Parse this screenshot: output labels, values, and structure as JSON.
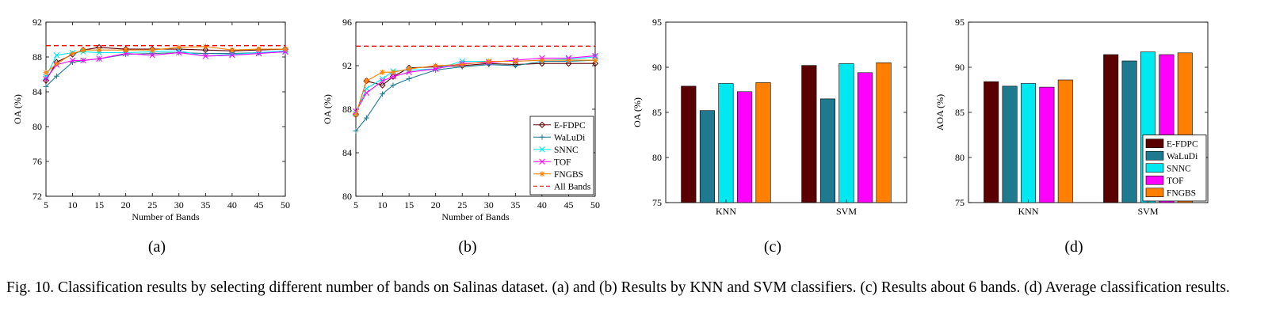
{
  "figure": {
    "caption_label": "Fig. 10.",
    "caption_text": "Classification results by selecting different number of bands on Salinas dataset. (a) and (b) Results by KNN and SVM classifiers. (c) Results about 6 bands. (d) Average classification results."
  },
  "colors": {
    "E-FDPC": "#5a0000",
    "WaLuDi": "#1f7a90",
    "SNNC": "#00e8f0",
    "TOF": "#ff00ff",
    "FNGBS": "#ff8000",
    "All Bands": "#ff0000"
  },
  "chart_data": [
    {
      "id": "a",
      "type": "line",
      "panel_label": "(a)",
      "xlabel": "Number of Bands",
      "ylabel": "OA (%)",
      "xlim": [
        5,
        50
      ],
      "ylim": [
        72,
        92
      ],
      "xticks": [
        5,
        10,
        15,
        20,
        25,
        30,
        35,
        40,
        45,
        50
      ],
      "yticks": [
        72,
        76,
        80,
        84,
        88,
        92
      ],
      "legend": "none",
      "x": [
        5,
        7,
        10,
        12,
        15,
        20,
        25,
        30,
        35,
        40,
        45,
        50
      ],
      "series": [
        {
          "name": "E-FDPC",
          "marker": "diamond",
          "values": [
            85.3,
            87.4,
            88.3,
            88.8,
            89.1,
            88.9,
            88.9,
            88.9,
            88.8,
            88.7,
            88.8,
            88.9
          ]
        },
        {
          "name": "WaLuDi",
          "marker": "plus",
          "values": [
            84.6,
            85.8,
            87.4,
            87.6,
            87.8,
            88.3,
            88.4,
            88.5,
            88.4,
            88.4,
            88.5,
            88.6
          ]
        },
        {
          "name": "SNNC",
          "marker": "x",
          "values": [
            85.7,
            88.2,
            88.5,
            88.6,
            88.5,
            88.5,
            88.6,
            88.7,
            88.1,
            88.3,
            88.5,
            88.7
          ]
        },
        {
          "name": "TOF",
          "marker": "x",
          "values": [
            85.5,
            87.1,
            87.6,
            87.6,
            87.8,
            88.4,
            88.2,
            88.5,
            88.1,
            88.2,
            88.4,
            88.6
          ]
        },
        {
          "name": "FNGBS",
          "marker": "star",
          "values": [
            86.2,
            87.2,
            88.4,
            88.8,
            88.8,
            88.8,
            88.8,
            89.1,
            89.2,
            88.8,
            88.9,
            88.9
          ]
        },
        {
          "name": "All Bands",
          "marker": "none",
          "dashed": true,
          "values": [
            89.3,
            89.3,
            89.3,
            89.3,
            89.3,
            89.3,
            89.3,
            89.3,
            89.3,
            89.3,
            89.3,
            89.3
          ]
        }
      ]
    },
    {
      "id": "b",
      "type": "line",
      "panel_label": "(b)",
      "xlabel": "Number of Bands",
      "ylabel": "OA (%)",
      "xlim": [
        5,
        50
      ],
      "ylim": [
        80,
        96
      ],
      "xticks": [
        5,
        10,
        15,
        20,
        25,
        30,
        35,
        40,
        45,
        50
      ],
      "yticks": [
        80,
        84,
        88,
        92,
        96
      ],
      "legend": "bottom-right",
      "x": [
        5,
        7,
        10,
        12,
        15,
        20,
        25,
        30,
        35,
        40,
        45,
        50
      ],
      "series": [
        {
          "name": "E-FDPC",
          "marker": "diamond",
          "values": [
            87.5,
            90.6,
            90.2,
            91.0,
            91.8,
            91.9,
            92.0,
            92.2,
            92.1,
            92.2,
            92.2,
            92.2
          ]
        },
        {
          "name": "WaLuDi",
          "marker": "plus",
          "values": [
            86.0,
            87.2,
            89.4,
            90.2,
            90.8,
            91.6,
            91.9,
            92.1,
            92.0,
            92.4,
            92.4,
            92.5
          ]
        },
        {
          "name": "SNNC",
          "marker": "x",
          "values": [
            87.6,
            89.9,
            90.8,
            91.5,
            91.6,
            91.7,
            92.4,
            92.4,
            92.4,
            92.5,
            92.6,
            92.8
          ]
        },
        {
          "name": "TOF",
          "marker": "x",
          "values": [
            87.8,
            89.5,
            90.6,
            91.0,
            91.4,
            91.7,
            92.2,
            92.3,
            92.5,
            92.7,
            92.7,
            92.9
          ]
        },
        {
          "name": "FNGBS",
          "marker": "star",
          "values": [
            87.5,
            90.6,
            91.4,
            91.4,
            91.7,
            92.0,
            92.1,
            92.4,
            92.4,
            92.5,
            92.5,
            92.5
          ]
        },
        {
          "name": "All Bands",
          "marker": "none",
          "dashed": true,
          "values": [
            93.8,
            93.8,
            93.8,
            93.8,
            93.8,
            93.8,
            93.8,
            93.8,
            93.8,
            93.8,
            93.8,
            93.8
          ]
        }
      ]
    },
    {
      "id": "c",
      "type": "bar",
      "panel_label": "(c)",
      "xlabel": "",
      "ylabel": "OA (%)",
      "ylim": [
        75,
        95
      ],
      "yticks": [
        75,
        80,
        85,
        90,
        95
      ],
      "legend": "none",
      "categories": [
        "KNN",
        "SVM"
      ],
      "series": [
        {
          "name": "E-FDPC",
          "values": [
            87.9,
            90.2
          ]
        },
        {
          "name": "WaLuDi",
          "values": [
            85.2,
            86.5
          ]
        },
        {
          "name": "SNNC",
          "values": [
            88.2,
            90.4
          ]
        },
        {
          "name": "TOF",
          "values": [
            87.3,
            89.4
          ]
        },
        {
          "name": "FNGBS",
          "values": [
            88.3,
            90.5
          ]
        }
      ]
    },
    {
      "id": "d",
      "type": "bar",
      "panel_label": "(d)",
      "xlabel": "",
      "ylabel": "AOA (%)",
      "ylim": [
        75,
        95
      ],
      "yticks": [
        75,
        80,
        85,
        90,
        95
      ],
      "legend": "bottom-right",
      "categories": [
        "KNN",
        "SVM"
      ],
      "series": [
        {
          "name": "E-FDPC",
          "values": [
            88.4,
            91.4
          ]
        },
        {
          "name": "WaLuDi",
          "values": [
            87.9,
            90.7
          ]
        },
        {
          "name": "SNNC",
          "values": [
            88.2,
            91.7
          ]
        },
        {
          "name": "TOF",
          "values": [
            87.8,
            91.4
          ]
        },
        {
          "name": "FNGBS",
          "values": [
            88.6,
            91.6
          ]
        }
      ]
    }
  ]
}
